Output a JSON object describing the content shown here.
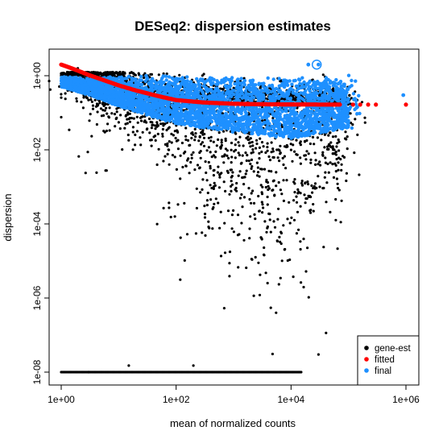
{
  "chart_data": {
    "type": "scatter",
    "title": "DESeq2: dispersion estimates",
    "xlabel": "mean of normalized counts",
    "ylabel": "dispersion",
    "x_scale": "log",
    "y_scale": "log",
    "xlim": [
      0.5,
      2000000
    ],
    "ylim": [
      5e-09,
      4
    ],
    "x_ticks": [
      {
        "value": 1,
        "label": "1e+00"
      },
      {
        "value": 100,
        "label": "1e+02"
      },
      {
        "value": 10000,
        "label": "1e+04"
      },
      {
        "value": 1000000,
        "label": "1e+06"
      }
    ],
    "y_ticks": [
      {
        "value": 1e-08,
        "label": "1e-08"
      },
      {
        "value": 1e-06,
        "label": "1e-06"
      },
      {
        "value": 0.0001,
        "label": "1e-04"
      },
      {
        "value": 0.01,
        "label": "1e-02"
      },
      {
        "value": 1,
        "label": "1e+00"
      }
    ],
    "grid": false,
    "legend_position": "bottom-right",
    "series": [
      {
        "name": "gene-est",
        "color": "#000000",
        "description_points": [
          [
            1,
            0.8
          ],
          [
            2,
            0.6
          ],
          [
            5,
            0.3
          ],
          [
            10,
            0.15
          ],
          [
            30,
            0.08
          ],
          [
            100,
            0.04
          ],
          [
            300,
            0.02
          ],
          [
            1000,
            0.01
          ],
          [
            3000,
            0.005
          ],
          [
            10000,
            0.008
          ],
          [
            30000,
            0.02
          ],
          [
            100000,
            0.1
          ],
          [
            3,
            0.003
          ],
          [
            50,
            0.0002
          ],
          [
            150,
            3e-05
          ],
          [
            500,
            0.0003
          ],
          [
            2000,
            0.001
          ],
          [
            8000,
            0.002
          ],
          [
            20000,
            0.004
          ]
        ],
        "zero_floor_range": [
          1,
          15000
        ],
        "zero_floor_value": 1e-08,
        "outliers": [
          [
            3,
            1e-08
          ],
          [
            15,
            1.5e-08
          ],
          [
            200,
            1.5e-08
          ],
          [
            30000,
            3e-08
          ]
        ]
      },
      {
        "name": "fitted",
        "color": "#ff0000",
        "curve": [
          [
            1,
            2.0
          ],
          [
            1.5,
            1.6
          ],
          [
            2,
            1.35
          ],
          [
            3,
            1.05
          ],
          [
            5,
            0.8
          ],
          [
            10,
            0.55
          ],
          [
            20,
            0.4
          ],
          [
            50,
            0.28
          ],
          [
            100,
            0.22
          ],
          [
            300,
            0.19
          ],
          [
            1000,
            0.175
          ],
          [
            3000,
            0.17
          ],
          [
            10000,
            0.168
          ],
          [
            30000,
            0.167
          ],
          [
            100000,
            0.166
          ],
          [
            300000,
            0.166
          ],
          [
            1000000,
            0.166
          ]
        ]
      },
      {
        "name": "final",
        "color": "#1e90ff",
        "envelope_upper": [
          [
            1,
            0.95
          ],
          [
            3,
            0.95
          ],
          [
            10,
            1.0
          ],
          [
            100,
            1.0
          ],
          [
            1000,
            0.95
          ],
          [
            10000,
            0.9
          ],
          [
            100000,
            0.8
          ]
        ],
        "envelope_lower": [
          [
            1,
            0.5
          ],
          [
            3,
            0.3
          ],
          [
            10,
            0.15
          ],
          [
            100,
            0.05
          ],
          [
            1000,
            0.03
          ],
          [
            10000,
            0.02
          ],
          [
            100000,
            0.04
          ]
        ],
        "outliers": [
          [
            20000,
            2.0
          ],
          [
            30000,
            2.0
          ],
          [
            900000,
            0.3
          ]
        ],
        "circled_point": [
          28000,
          2.0
        ]
      }
    ],
    "legend": [
      "gene-est",
      "fitted",
      "final"
    ]
  }
}
